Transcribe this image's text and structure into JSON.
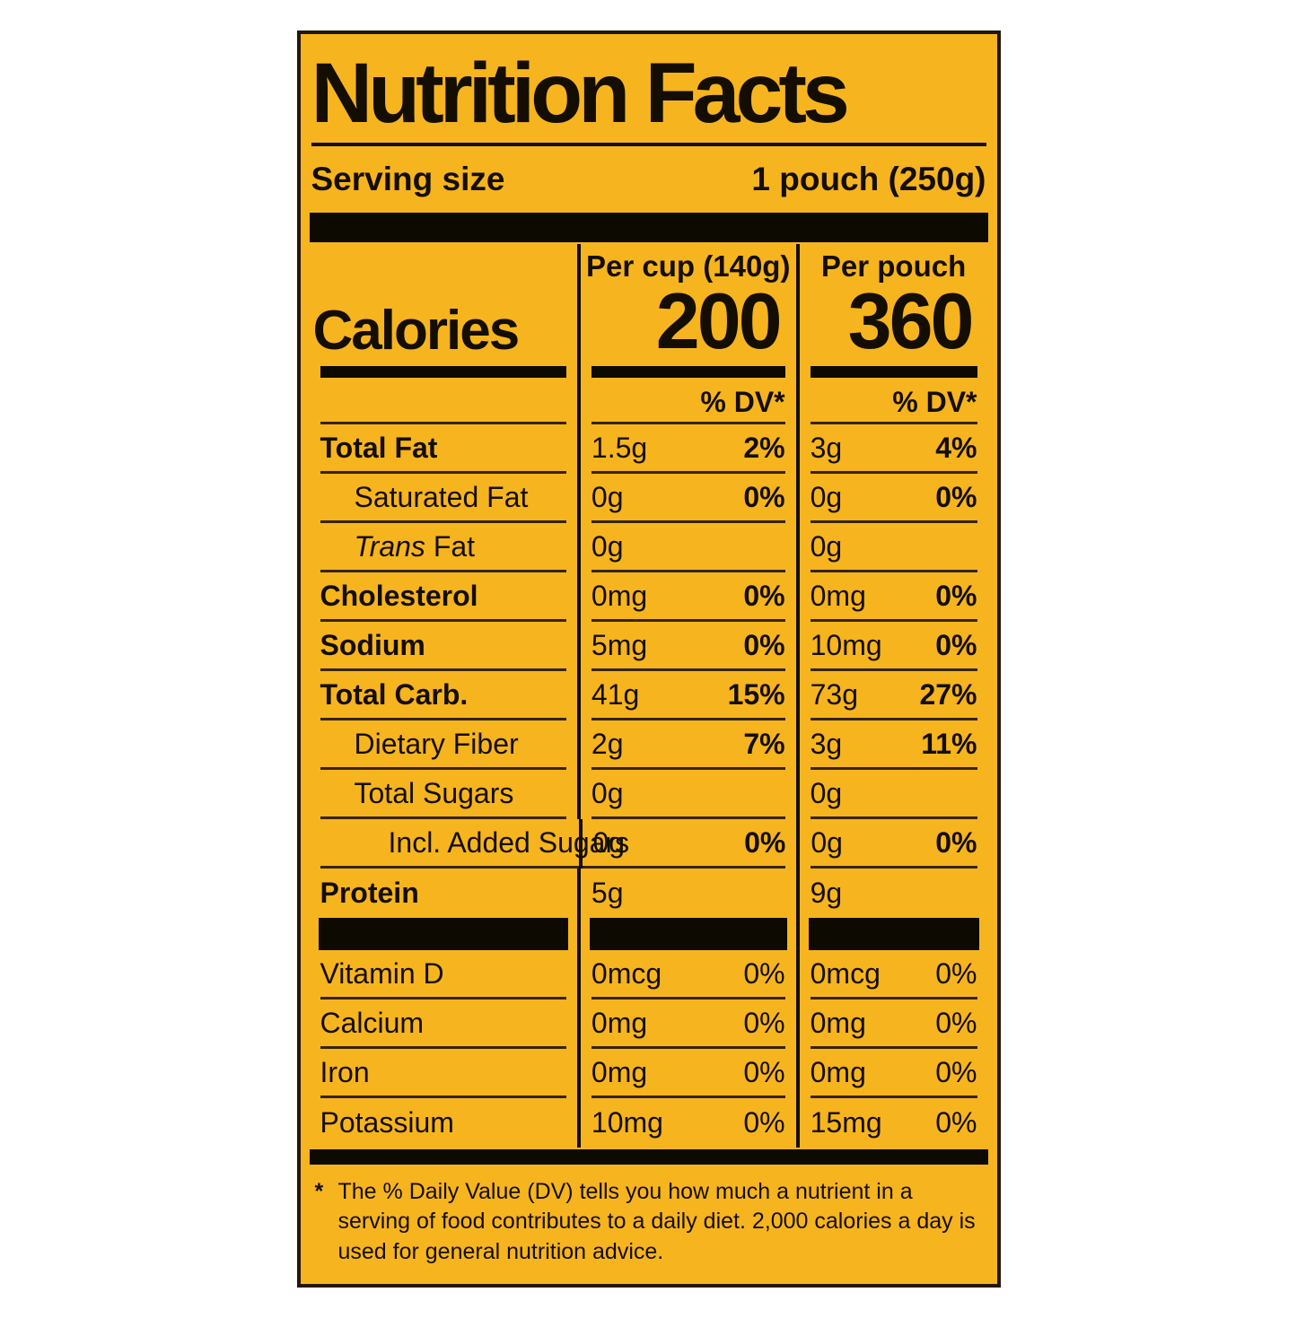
{
  "colors": {
    "background": "#f6b41f",
    "ink": "#140e02",
    "hairline": "#352405"
  },
  "header": {
    "title": "Nutrition Facts",
    "serving_label": "Serving size",
    "serving_value": "1 pouch (250g)"
  },
  "calories": {
    "label": "Calories",
    "cup_header": "Per cup (140g)",
    "pouch_header": "Per pouch",
    "cup_value": "200",
    "pouch_value": "360",
    "dv_header": "% DV*"
  },
  "table": {
    "rows": [
      {
        "label_it": "",
        "label": "Total Fat",
        "bold": true,
        "indent": 0,
        "cup_amt": "1.5g",
        "cup_dv": "2%",
        "pouch_amt": "3g",
        "pouch_dv": "4%",
        "dv_bold": true,
        "no_rule": false
      },
      {
        "label_it": "",
        "label": "Saturated Fat",
        "bold": false,
        "indent": 1,
        "cup_amt": "0g",
        "cup_dv": "0%",
        "pouch_amt": "0g",
        "pouch_dv": "0%",
        "dv_bold": true,
        "no_rule": false
      },
      {
        "label_it": "Trans",
        "label": " Fat",
        "bold": false,
        "indent": 1,
        "cup_amt": "0g",
        "cup_dv": "",
        "pouch_amt": "0g",
        "pouch_dv": "",
        "dv_bold": true,
        "no_rule": false
      },
      {
        "label_it": "",
        "label": "Cholesterol",
        "bold": true,
        "indent": 0,
        "cup_amt": "0mg",
        "cup_dv": "0%",
        "pouch_amt": "0mg",
        "pouch_dv": "0%",
        "dv_bold": true,
        "no_rule": false
      },
      {
        "label_it": "",
        "label": "Sodium",
        "bold": true,
        "indent": 0,
        "cup_amt": "5mg",
        "cup_dv": "0%",
        "pouch_amt": "10mg",
        "pouch_dv": "0%",
        "dv_bold": true,
        "no_rule": false
      },
      {
        "label_it": "",
        "label": "Total Carb.",
        "bold": true,
        "indent": 0,
        "cup_amt": "41g",
        "cup_dv": "15%",
        "pouch_amt": "73g",
        "pouch_dv": "27%",
        "dv_bold": true,
        "no_rule": false
      },
      {
        "label_it": "",
        "label": "Dietary Fiber",
        "bold": false,
        "indent": 1,
        "cup_amt": "2g",
        "cup_dv": "7%",
        "pouch_amt": "3g",
        "pouch_dv": "11%",
        "dv_bold": true,
        "no_rule": false
      },
      {
        "label_it": "",
        "label": "Total Sugars",
        "bold": false,
        "indent": 1,
        "cup_amt": "0g",
        "cup_dv": "",
        "pouch_amt": "0g",
        "pouch_dv": "",
        "dv_bold": true,
        "no_rule": false
      },
      {
        "label_it": "",
        "label": "Incl. Added Sugars",
        "bold": false,
        "indent": 2,
        "cup_amt": "0g",
        "cup_dv": "0%",
        "pouch_amt": "0g",
        "pouch_dv": "0%",
        "dv_bold": true,
        "no_rule": false
      },
      {
        "label_it": "",
        "label": "Protein",
        "bold": true,
        "indent": 0,
        "cup_amt": "5g",
        "cup_dv": "",
        "pouch_amt": "9g",
        "pouch_dv": "",
        "dv_bold": true,
        "no_rule": true
      }
    ],
    "vitamin_rows": [
      {
        "label_it": "",
        "label": "Vitamin D",
        "bold": false,
        "indent": 0,
        "cup_amt": "0mcg",
        "cup_dv": "0%",
        "pouch_amt": "0mcg",
        "pouch_dv": "0%",
        "dv_bold": false,
        "no_rule": false
      },
      {
        "label_it": "",
        "label": "Calcium",
        "bold": false,
        "indent": 0,
        "cup_amt": "0mg",
        "cup_dv": "0%",
        "pouch_amt": "0mg",
        "pouch_dv": "0%",
        "dv_bold": false,
        "no_rule": false
      },
      {
        "label_it": "",
        "label": "Iron",
        "bold": false,
        "indent": 0,
        "cup_amt": "0mg",
        "cup_dv": "0%",
        "pouch_amt": "0mg",
        "pouch_dv": "0%",
        "dv_bold": false,
        "no_rule": false
      },
      {
        "label_it": "",
        "label": "Potassium",
        "bold": false,
        "indent": 0,
        "cup_amt": "10mg",
        "cup_dv": "0%",
        "pouch_amt": "15mg",
        "pouch_dv": "0%",
        "dv_bold": false,
        "no_rule": true
      }
    ]
  },
  "footnote": {
    "asterisk": "*",
    "text": "The % Daily Value (DV) tells you how much a nutrient in a serving of food contributes to a daily diet. 2,000 calories a day is used for general nutrition advice."
  }
}
